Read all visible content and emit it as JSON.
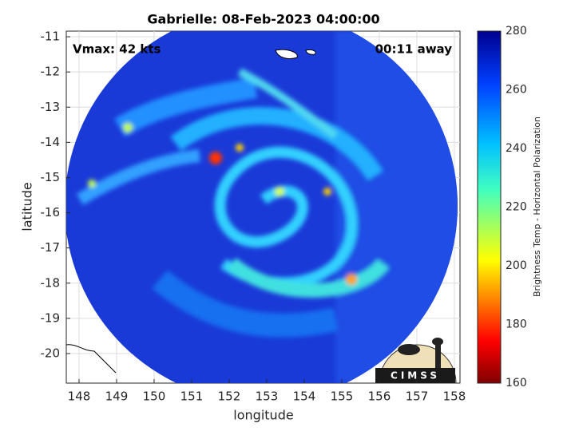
{
  "title": "Gabrielle: 08-Feb-2023 04:00:00",
  "annotations": {
    "vmax": "Vmax: 42 kts",
    "time_away": "00:11 away"
  },
  "x_axis": {
    "label": "longitude",
    "lim": [
      147.66,
      158.15
    ],
    "ticks": [
      148,
      149,
      150,
      151,
      152,
      153,
      154,
      155,
      156,
      157,
      158
    ]
  },
  "y_axis": {
    "label": "latitude",
    "lim": [
      -10.84,
      -20.84
    ],
    "ticks": [
      -11,
      -12,
      -13,
      -14,
      -15,
      -16,
      -17,
      -18,
      -19,
      -20
    ]
  },
  "colorbar": {
    "label": "Brightness Temp - Horizontal Polarization",
    "lim": [
      160,
      280
    ],
    "ticks": [
      160,
      180,
      200,
      220,
      240,
      260,
      280
    ]
  },
  "logo": "CIMSS"
}
